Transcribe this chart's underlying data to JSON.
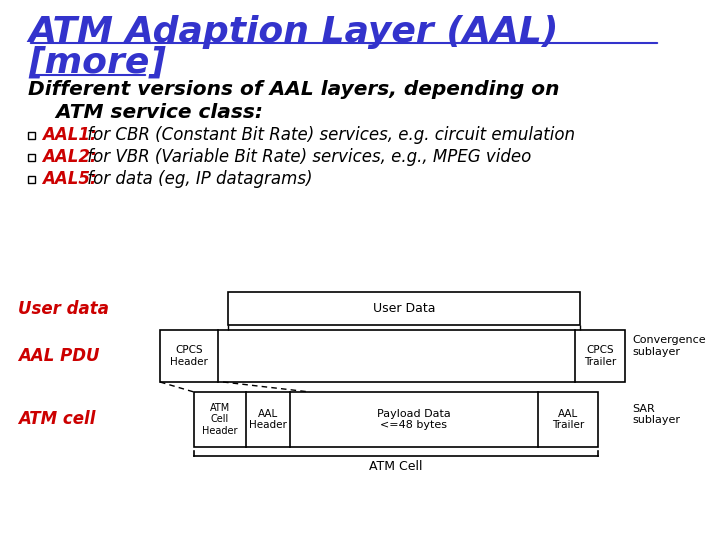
{
  "title_line1": "ATM Adaption Layer (AAL)",
  "title_line2": "[more]",
  "title_color": "#3333CC",
  "subtitle_line1": "Different versions of AAL layers, depending on",
  "subtitle_line2": "    ATM service class:",
  "subtitle_color": "#000000",
  "bullets": [
    {
      "label": "AAL1:",
      "text": " for CBR (Constant Bit Rate) services, e.g. circuit emulation"
    },
    {
      "label": "AAL2:",
      "text": " for VBR (Variable Bit Rate) services, e.g., MPEG video"
    },
    {
      "label": "AAL5:",
      "text": " for data (eg, IP datagrams)"
    }
  ],
  "bullet_label_color": "#CC0000",
  "bullet_text_color": "#000000",
  "bg_color": "#FFFFFF",
  "diagram": {
    "user_data_label": "User data",
    "user_data_box_text": "User Data",
    "aal_pdu_label": "AAL PDU",
    "atm_cell_label": "ATM cell",
    "cpcs_header_text": "CPCS\nHeader",
    "cpcs_trailer_text": "CPCS\nTrailer",
    "atm_cell_header_text": "ATM\nCell\nHeader",
    "aal_header_text": "AAL\nHeader",
    "payload_text": "Payload Data\n<=48 bytes",
    "aal_trailer_text": "AAL\nTrailer",
    "atm_cell_brace_text": "ATM Cell",
    "convergence_sublayer_text": "Convergence\nsublayer",
    "sar_sublayer_text": "SAR\nsublayer",
    "label_color": "#CC0000",
    "box_edge_color": "#000000",
    "text_color": "#000000"
  }
}
